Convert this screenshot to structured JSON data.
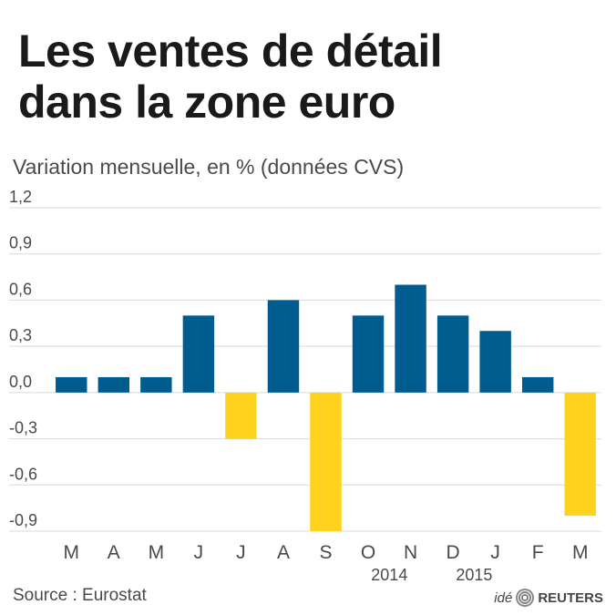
{
  "header": {
    "title_line1": "Les ventes de détail",
    "title_line2": "dans la zone euro",
    "subtitle": "Variation mensuelle, en % (données CVS)"
  },
  "footer": {
    "source": "Source : Eurostat",
    "brand_prefix": "idé",
    "brand_name": "REUTERS"
  },
  "chart_data": {
    "type": "bar",
    "title": "Les ventes de détail dans la zone euro",
    "subtitle": "Variation mensuelle, en % (données CVS)",
    "categories": [
      "M",
      "A",
      "M",
      "J",
      "J",
      "A",
      "S",
      "O",
      "N",
      "D",
      "J",
      "F",
      "M"
    ],
    "values": [
      0.1,
      0.1,
      0.1,
      0.5,
      -0.3,
      0.6,
      -0.9,
      0.5,
      0.7,
      0.5,
      0.4,
      0.1,
      -0.8
    ],
    "year_labels": [
      {
        "label": "2014",
        "category_index": 7.5
      },
      {
        "label": "2015",
        "category_index": 9.5
      }
    ],
    "ylim": [
      -0.9,
      1.2
    ],
    "yticks": [
      "1,2",
      "0,9",
      "0,6",
      "0,3",
      "0,0",
      "-0,3",
      "-0,6",
      "-0,9"
    ],
    "ytick_values": [
      1.2,
      0.9,
      0.6,
      0.3,
      0.0,
      -0.3,
      -0.6,
      -0.9
    ],
    "colors": {
      "positive": "#005c8f",
      "negative": "#ffd21f",
      "grid": "#d9d9d9"
    },
    "grid": true,
    "xlabel": "",
    "ylabel": ""
  }
}
